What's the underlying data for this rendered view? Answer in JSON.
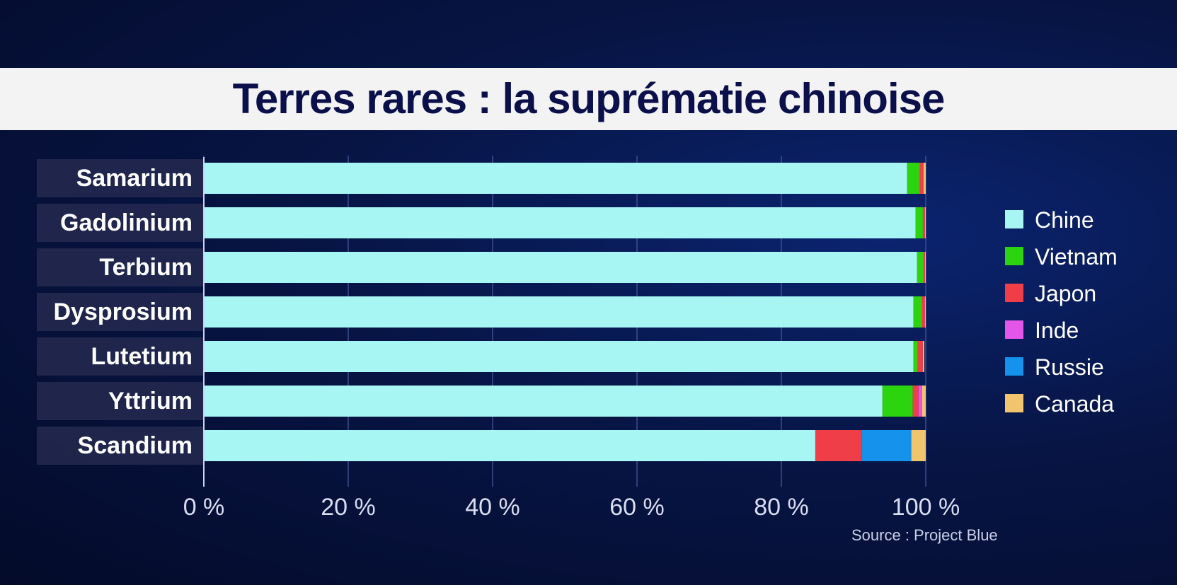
{
  "chart_data": {
    "type": "bar",
    "orientation": "horizontal",
    "stacked": true,
    "title": "Terres rares : la suprématie chinoise",
    "source": "Source : Project Blue",
    "categories": [
      "Samarium",
      "Gadolinium",
      "Terbium",
      "Dysprosium",
      "Lutetium",
      "Yttrium",
      "Scandium"
    ],
    "series": [
      {
        "name": "Chine",
        "color": "#a8f6f4",
        "values": [
          97.4,
          98.6,
          98.8,
          98.3,
          98.3,
          94.0,
          84.7
        ]
      },
      {
        "name": "Vietnam",
        "color": "#2cd40f",
        "values": [
          1.8,
          1.0,
          0.9,
          1.2,
          0.6,
          4.2,
          0.0
        ]
      },
      {
        "name": "Japon",
        "color": "#f03e48",
        "values": [
          0.5,
          0.3,
          0.2,
          0.4,
          0.7,
          0.8,
          6.4
        ]
      },
      {
        "name": "Inde",
        "color": "#e455ea",
        "values": [
          0.0,
          0.0,
          0.0,
          0.0,
          0.0,
          0.5,
          0.0
        ]
      },
      {
        "name": "Russie",
        "color": "#1592ec",
        "values": [
          0.0,
          0.0,
          0.0,
          0.0,
          0.0,
          0.0,
          6.9
        ]
      },
      {
        "name": "Canada",
        "color": "#f2c46e",
        "values": [
          0.3,
          0.1,
          0.1,
          0.1,
          0.2,
          0.5,
          2.0
        ]
      }
    ],
    "xlim": [
      0,
      100
    ],
    "x_ticks": [
      "0 %",
      "20 %",
      "40 %",
      "60 %",
      "80 %",
      "100 %"
    ],
    "grid": true,
    "legend_position": "right"
  }
}
